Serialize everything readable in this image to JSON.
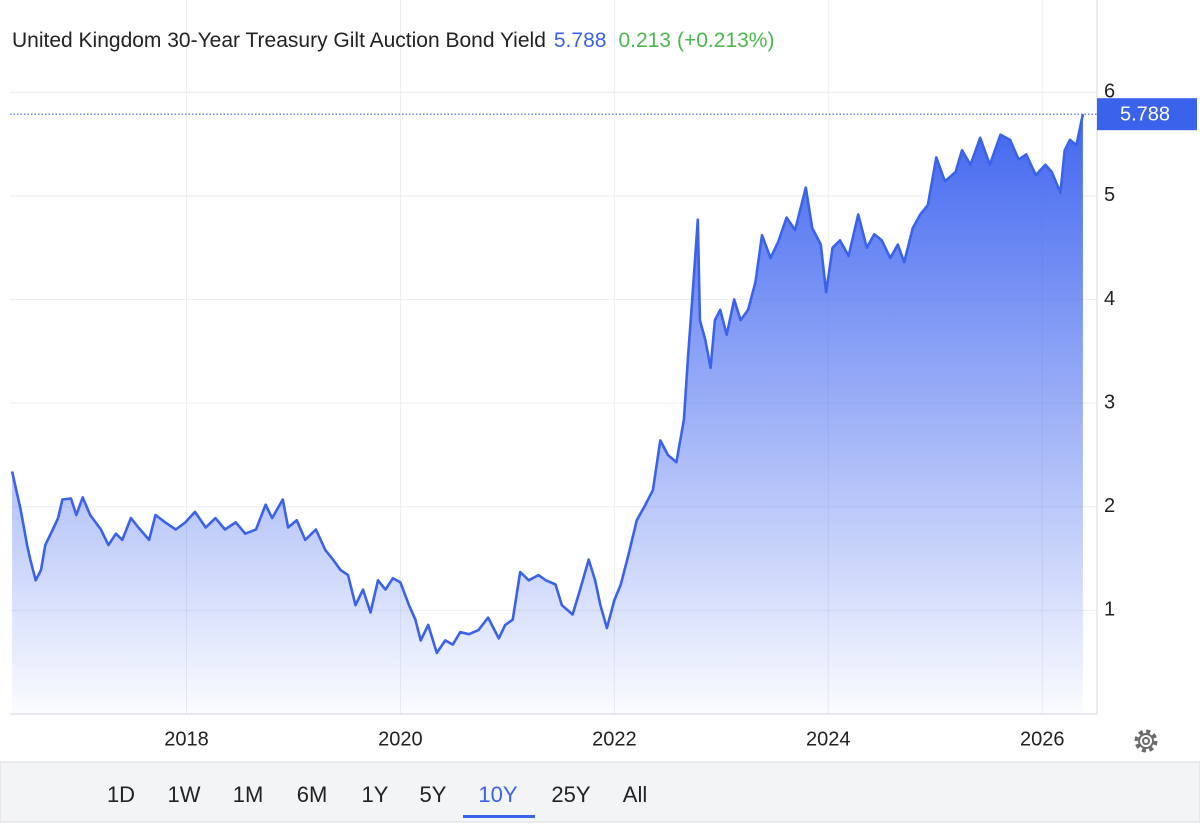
{
  "chart_data": {
    "type": "area",
    "title": "United Kingdom 30-Year Treasury Gilt Auction Bond Yield",
    "change": 0.213,
    "change_label": "(+0.213%)",
    "color": "#3b62ea",
    "change_color": "#4cb84c",
    "x": [
      2016.37,
      2016.45,
      2016.51,
      2016.54,
      2016.59,
      2016.64,
      2016.68,
      2016.75,
      2016.8,
      2016.84,
      2016.92,
      2016.97,
      2017.03,
      2017.1,
      2017.2,
      2017.27,
      2017.34,
      2017.4,
      2017.48,
      2017.55,
      2017.65,
      2017.71,
      2017.8,
      2017.9,
      2017.99,
      2018.08,
      2018.18,
      2018.27,
      2018.36,
      2018.46,
      2018.55,
      2018.65,
      2018.74,
      2018.8,
      2018.9,
      2018.95,
      2019.03,
      2019.11,
      2019.21,
      2019.3,
      2019.37,
      2019.44,
      2019.51,
      2019.58,
      2019.65,
      2019.72,
      2019.79,
      2019.86,
      2019.93,
      2020.0,
      2020.08,
      2020.14,
      2020.19,
      2020.26,
      2020.34,
      2020.42,
      2020.49,
      2020.56,
      2020.64,
      2020.73,
      2020.82,
      2020.92,
      2020.98,
      2021.05,
      2021.12,
      2021.2,
      2021.29,
      2021.36,
      2021.45,
      2021.51,
      2021.61,
      2021.68,
      2021.76,
      2021.82,
      2021.87,
      2021.93,
      2022.0,
      2022.06,
      2022.13,
      2022.21,
      2022.29,
      2022.36,
      2022.43,
      2022.5,
      2022.58,
      2022.65,
      2022.69,
      2022.73,
      2022.78,
      2022.8,
      2022.85,
      2022.9,
      2022.94,
      2022.99,
      2023.05,
      2023.12,
      2023.18,
      2023.25,
      2023.32,
      2023.38,
      2023.46,
      2023.53,
      2023.61,
      2023.69,
      2023.79,
      2023.85,
      2023.93,
      2023.98,
      2024.04,
      2024.11,
      2024.19,
      2024.28,
      2024.36,
      2024.43,
      2024.5,
      2024.58,
      2024.65,
      2024.71,
      2024.79,
      2024.86,
      2024.93,
      2025.01,
      2025.09,
      2025.19,
      2025.25,
      2025.33,
      2025.42,
      2025.51,
      2025.61,
      2025.7,
      2025.78,
      2025.85,
      2025.94,
      2026.03,
      2026.09,
      2026.17,
      2026.21,
      2026.26,
      2026.32,
      2026.38
    ],
    "values": [
      2.34,
      1.97,
      1.63,
      1.49,
      1.29,
      1.39,
      1.63,
      1.78,
      1.89,
      2.07,
      2.08,
      1.92,
      2.09,
      1.92,
      1.78,
      1.63,
      1.74,
      1.68,
      1.89,
      1.8,
      1.68,
      1.92,
      1.85,
      1.78,
      1.85,
      1.95,
      1.8,
      1.89,
      1.78,
      1.85,
      1.74,
      1.78,
      2.02,
      1.89,
      2.07,
      1.8,
      1.87,
      1.68,
      1.78,
      1.58,
      1.49,
      1.39,
      1.34,
      1.05,
      1.2,
      0.98,
      1.29,
      1.2,
      1.31,
      1.27,
      1.05,
      0.91,
      0.71,
      0.86,
      0.59,
      0.71,
      0.67,
      0.79,
      0.77,
      0.81,
      0.93,
      0.73,
      0.86,
      0.91,
      1.37,
      1.29,
      1.34,
      1.29,
      1.25,
      1.05,
      0.96,
      1.2,
      1.49,
      1.29,
      1.05,
      0.83,
      1.1,
      1.25,
      1.53,
      1.87,
      2.02,
      2.16,
      2.64,
      2.5,
      2.43,
      2.84,
      3.47,
      4.02,
      4.77,
      3.8,
      3.61,
      3.34,
      3.8,
      3.9,
      3.66,
      4.0,
      3.8,
      3.9,
      4.17,
      4.62,
      4.4,
      4.55,
      4.79,
      4.67,
      5.08,
      4.69,
      4.53,
      4.07,
      4.5,
      4.57,
      4.42,
      4.82,
      4.5,
      4.63,
      4.57,
      4.4,
      4.53,
      4.36,
      4.69,
      4.82,
      4.91,
      5.37,
      5.14,
      5.23,
      5.44,
      5.3,
      5.56,
      5.3,
      5.59,
      5.54,
      5.35,
      5.4,
      5.2,
      5.3,
      5.23,
      5.03,
      5.44,
      5.54,
      5.49,
      5.788
    ],
    "xlim": [
      2016.35,
      2026.4
    ],
    "xticks": [
      2018,
      2020,
      2022,
      2024,
      2026
    ],
    "ylim": [
      0,
      6.89
    ],
    "yticks": [
      1,
      2,
      3,
      4,
      5,
      6
    ],
    "grid": true,
    "ranges": [
      "1D",
      "1W",
      "1M",
      "6M",
      "1Y",
      "5Y",
      "10Y",
      "25Y",
      "All"
    ],
    "selected_range": "10Y"
  }
}
